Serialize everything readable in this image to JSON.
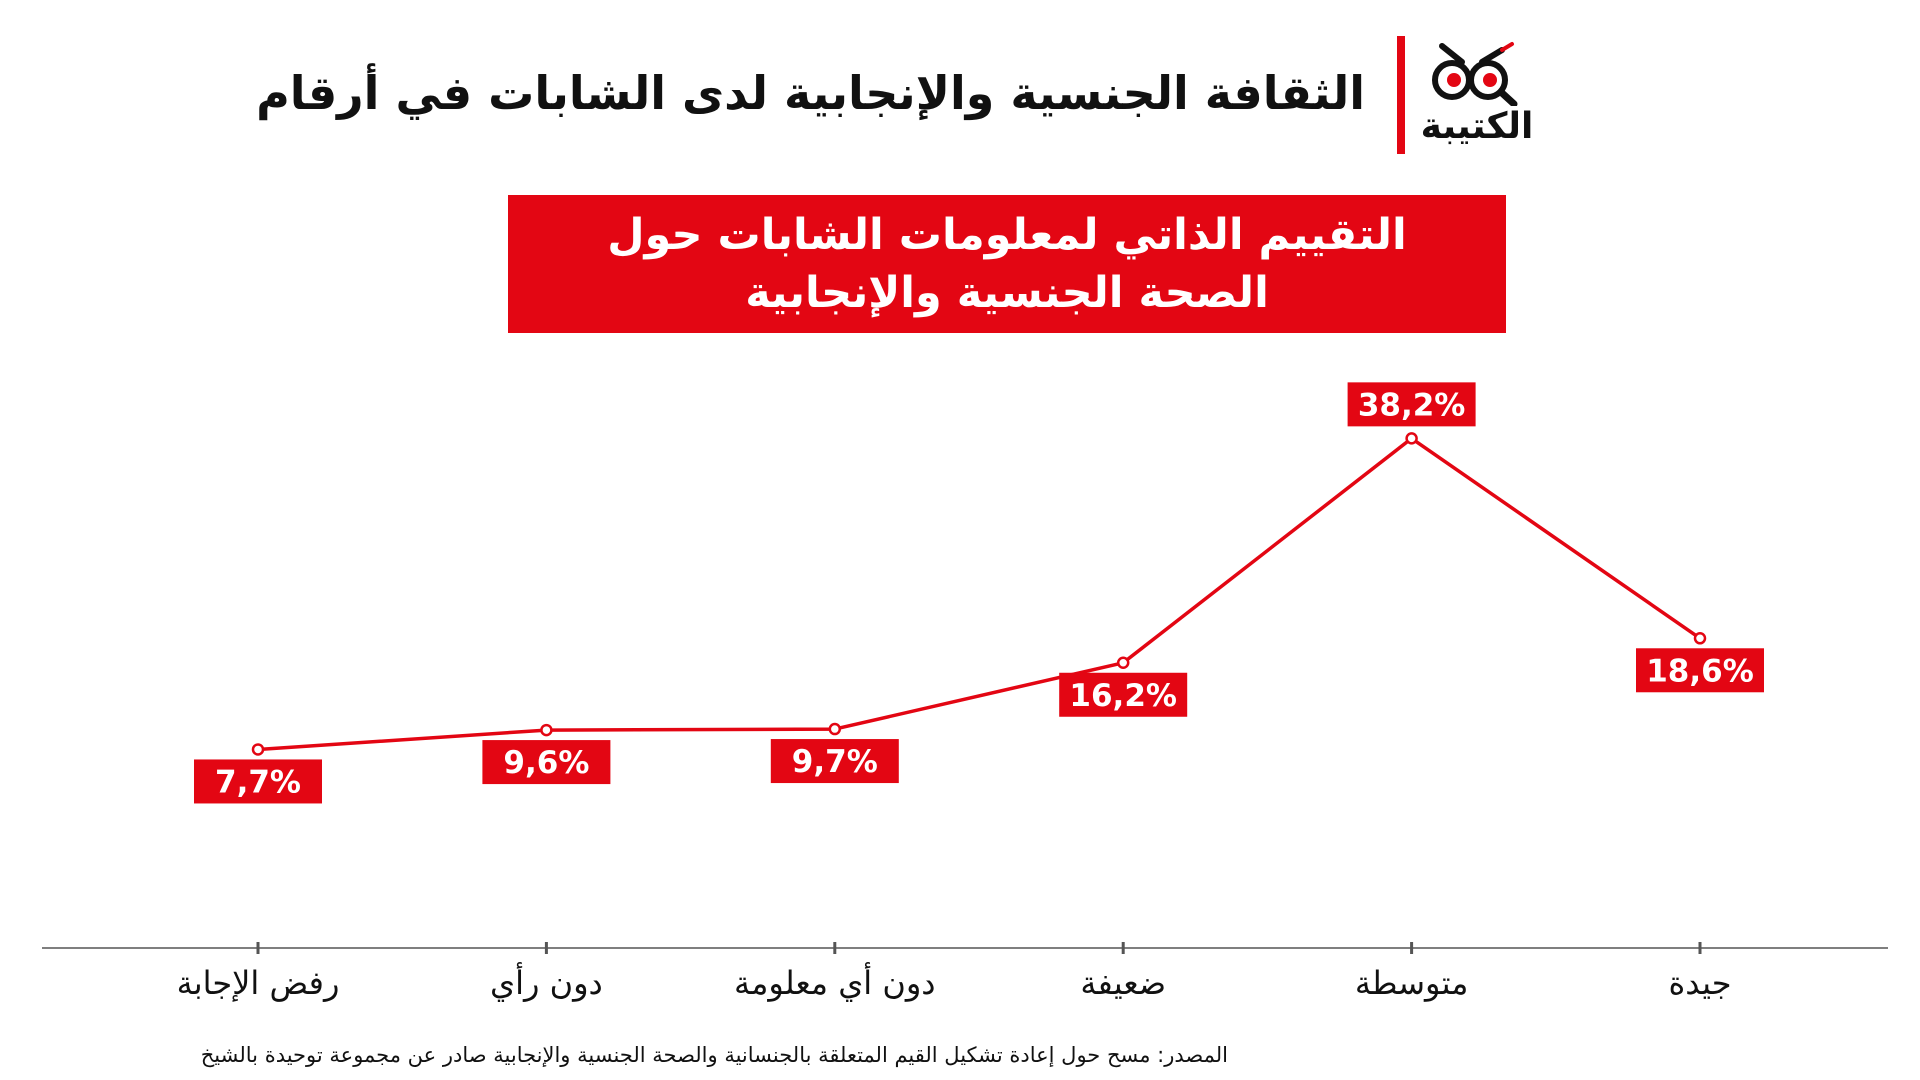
{
  "header": {
    "title": "الثقافة الجنسية والإنجابية لدى الشابات في أرقام",
    "logo_text": "الكتيبة"
  },
  "colors": {
    "accent": "#e30613",
    "text": "#111111",
    "axis": "#555555"
  },
  "chart_data": {
    "type": "line",
    "title_line1": "التقييم الذاتي لمعلومات الشابات حول",
    "title_line2": "الصحة الجنسية والإنجابية",
    "categories": [
      "رفض الإجابة",
      "دون رأي",
      "دون أي معلومة",
      "ضعيفة",
      "متوسطة",
      "جيدة"
    ],
    "values": [
      7.7,
      9.6,
      9.7,
      16.2,
      38.2,
      18.6
    ],
    "data_labels": [
      "7,7%",
      "9,6%",
      "9,7%",
      "16,2%",
      "38,2%",
      "18,6%"
    ],
    "xlabel": "",
    "ylabel": "",
    "ylim": [
      0,
      40
    ],
    "grid": false,
    "legend": false
  },
  "source": "المصدر: مسح حول إعادة تشكيل القيم المتعلقة بالجنسانية والصحة الجنسية والإنجابية صادر عن مجموعة توحيدة بالشيخ"
}
